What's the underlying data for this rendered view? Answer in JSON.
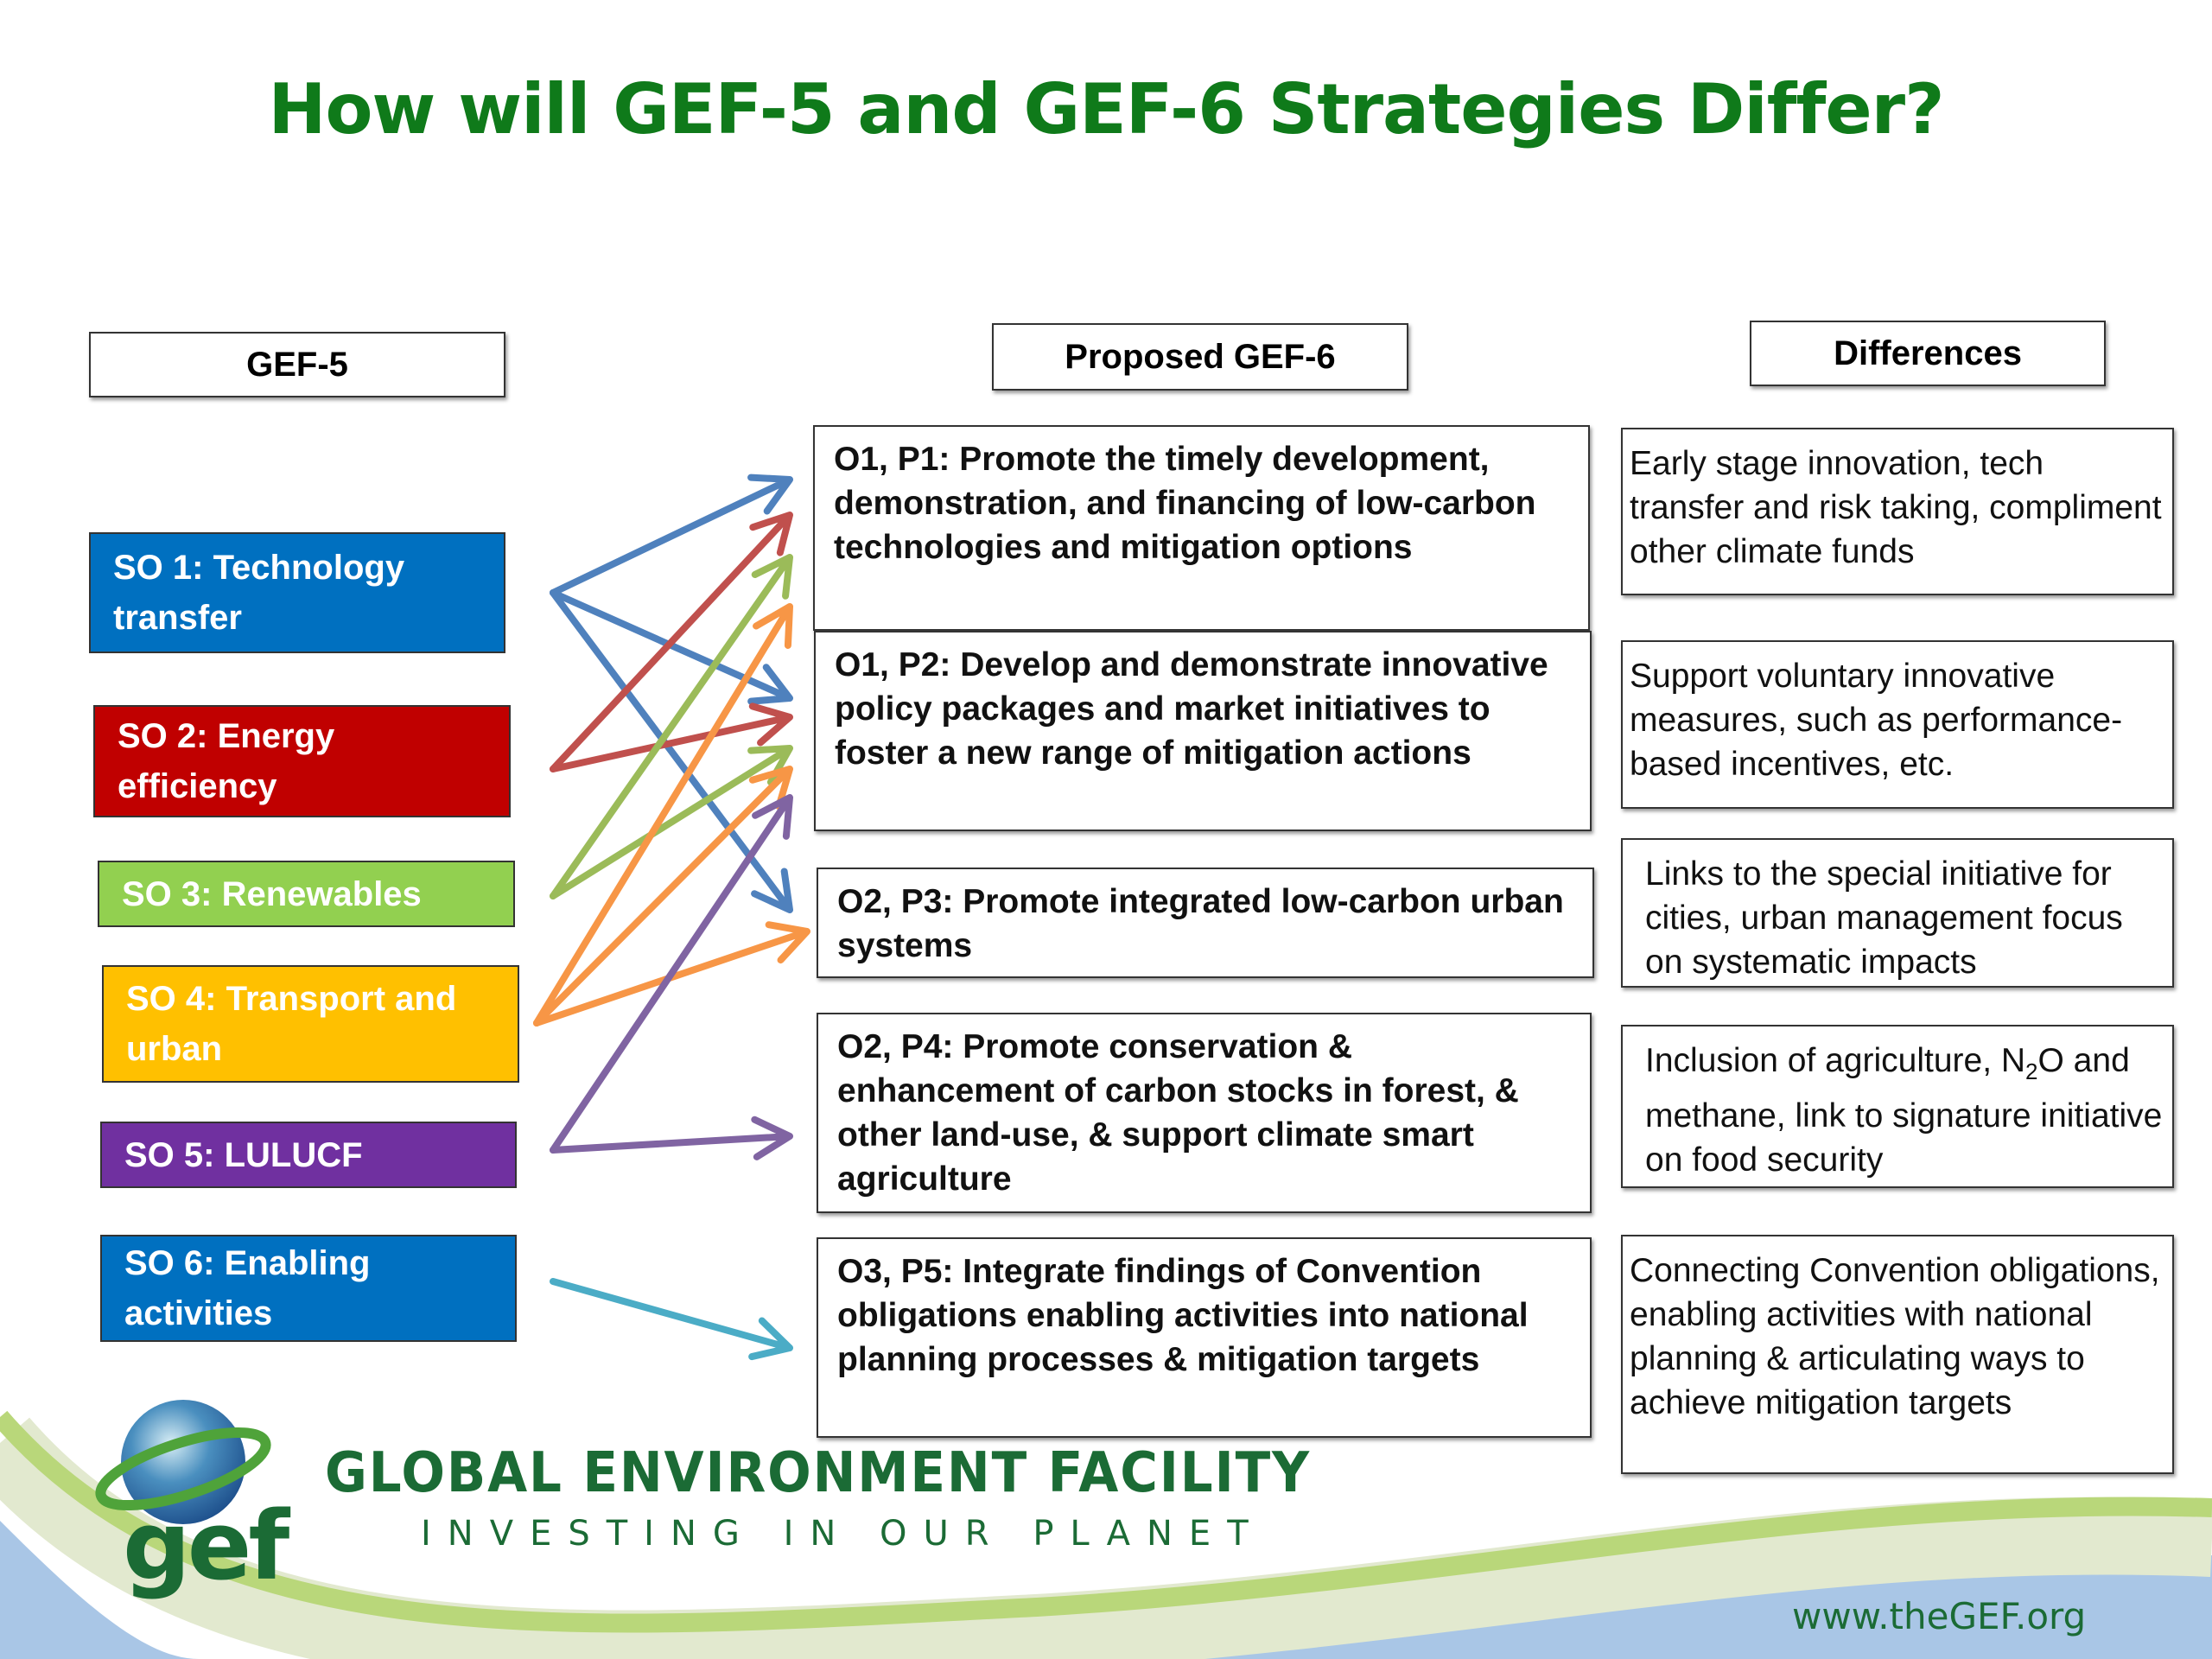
{
  "title": "How will GEF-5 and GEF-6 Strategies Differ?",
  "headers": {
    "gef5": "GEF-5",
    "gef6": "Proposed GEF-6",
    "differences": "Differences"
  },
  "gef5_objectives": [
    {
      "label": "SO 1: Technology transfer",
      "color": "#0070c0"
    },
    {
      "label": "SO 2:  Energy efficiency",
      "color": "#c00000"
    },
    {
      "label": "SO 3:  Renewables",
      "color": "#92d050"
    },
    {
      "label": "SO 4:  Transport and urban",
      "color": "#ffc000"
    },
    {
      "label": "SO 5:  LULUCF",
      "color": "#7030a0"
    },
    {
      "label": "SO 6:  Enabling activities",
      "color": "#0070c0"
    }
  ],
  "gef6_programs": [
    "O1, P1:  Promote the timely development, demonstration, and financing of low-carbon technologies and mitigation options",
    "O1, P2: Develop and demonstrate innovative policy packages and market initiatives to foster a new range of mitigation actions",
    "O2, P3: Promote integrated low-carbon urban systems",
    "O2, P4: Promote conservation & enhancement of carbon stocks in forest, & other land-use, & support climate smart agriculture",
    "O3, P5: Integrate findings of Convention obligations enabling activities into national planning processes & mitigation targets"
  ],
  "differences": [
    "Early stage innovation, tech transfer and risk taking, compliment other climate funds",
    "Support voluntary innovative measures, such as performance-based incentives, etc.",
    "Links to the special initiative for cities, urban management focus on systematic impacts",
    {
      "before": "Inclusion of agriculture, N",
      "sub": "2",
      "after": "O and methane, link to signature initiative on food security"
    },
    "Connecting Convention obligations, enabling activities with national planning & articulating ways to achieve mitigation targets"
  ],
  "mappings": [
    {
      "from": "SO 1",
      "to": [
        "P1",
        "P2",
        "P3"
      ],
      "color": "#4f81bd"
    },
    {
      "from": "SO 2",
      "to": [
        "P1",
        "P2"
      ],
      "color": "#c0504d"
    },
    {
      "from": "SO 3",
      "to": [
        "P1",
        "P2"
      ],
      "color": "#9bbb59"
    },
    {
      "from": "SO 4",
      "to": [
        "P1",
        "P2",
        "P3"
      ],
      "color": "#f79646"
    },
    {
      "from": "SO 5",
      "to": [
        "P2",
        "P4"
      ],
      "color": "#8064a2"
    },
    {
      "from": "SO 6",
      "to": [
        "P5"
      ],
      "color": "#4bacc6"
    }
  ],
  "footer": {
    "logo_text": "gef",
    "organization": "GLOBAL ENVIRONMENT FACILITY",
    "tagline": "INVESTING IN OUR PLANET",
    "url": "www.theGEF.org"
  }
}
